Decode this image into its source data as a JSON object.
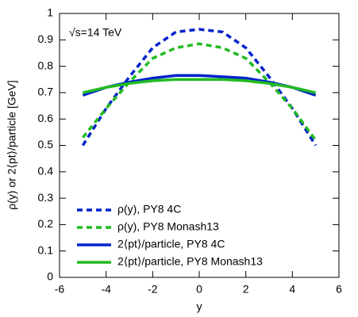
{
  "chart_data": {
    "type": "line",
    "annotation": "√s=14 TeV",
    "xlabel": "y",
    "ylabel": "ρ(y) or 2⟨pt⟩/particle [GeV]",
    "x": [
      -5,
      -4,
      -3,
      -2,
      -1,
      0,
      1,
      2,
      3,
      4,
      5
    ],
    "series": [
      {
        "name": "ρ(y), PY8 4C",
        "color": "#0022cc",
        "style": "dashed",
        "values": [
          0.5,
          0.64,
          0.76,
          0.87,
          0.93,
          0.94,
          0.93,
          0.87,
          0.76,
          0.64,
          0.5
        ]
      },
      {
        "name": "ρ(y), PY8 Monash13",
        "color": "#22bb22",
        "style": "dashed",
        "values": [
          0.53,
          0.64,
          0.74,
          0.83,
          0.87,
          0.885,
          0.87,
          0.83,
          0.74,
          0.64,
          0.52
        ]
      },
      {
        "name": "2⟨pt⟩/particle, PY8 4C",
        "color": "#0022cc",
        "style": "solid",
        "values": [
          0.69,
          0.72,
          0.74,
          0.755,
          0.765,
          0.765,
          0.76,
          0.755,
          0.74,
          0.72,
          0.69
        ]
      },
      {
        "name": "2⟨pt⟩/particle, PY8 Monash13",
        "color": "#22bb22",
        "style": "solid",
        "values": [
          0.7,
          0.72,
          0.735,
          0.745,
          0.75,
          0.75,
          0.75,
          0.745,
          0.735,
          0.72,
          0.7
        ]
      }
    ],
    "xlim": [
      -6,
      6
    ],
    "xticks": [
      -6,
      -4,
      -2,
      0,
      2,
      4,
      6
    ],
    "ylim": [
      0,
      1
    ],
    "yticks": [
      0,
      0.1,
      0.2,
      0.3,
      0.4,
      0.5,
      0.6,
      0.7,
      0.8,
      0.9,
      1
    ],
    "grid": false,
    "legend": "lower left"
  }
}
